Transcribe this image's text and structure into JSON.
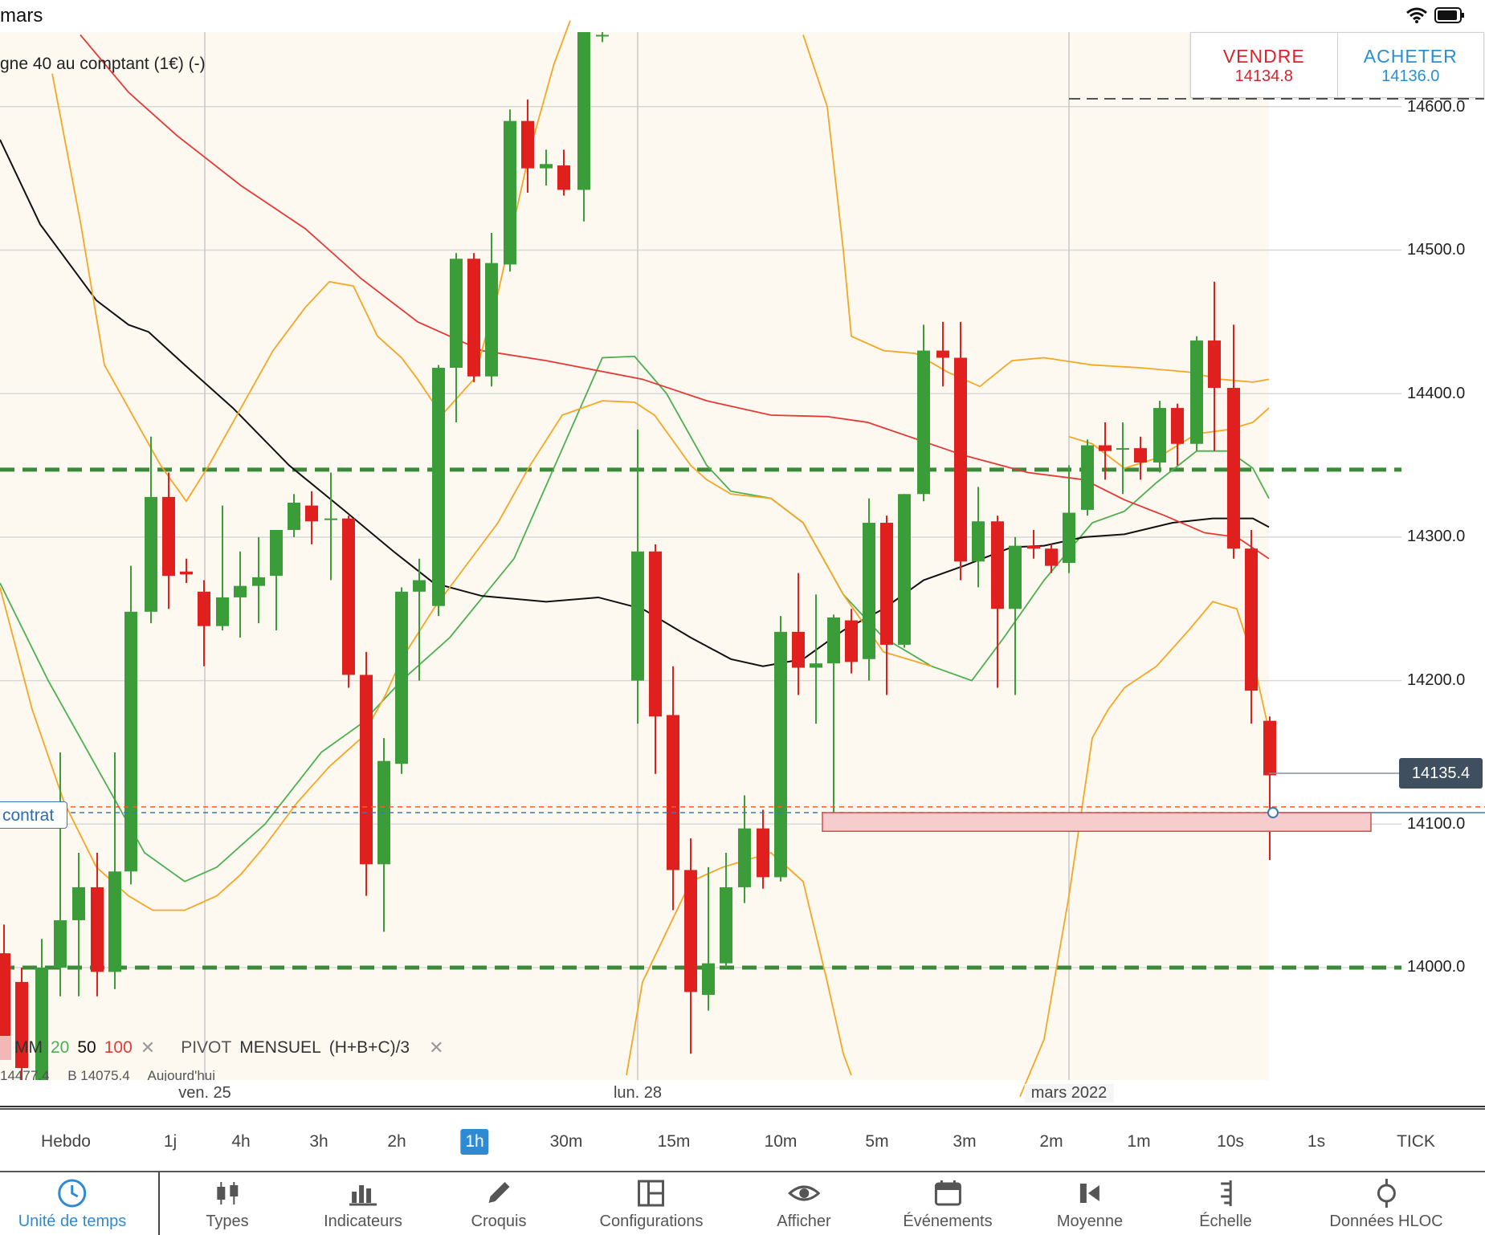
{
  "status_bar": {
    "title": "mars"
  },
  "instrument": {
    "label": "gne 40 au comptant (1€) (-)"
  },
  "trade": {
    "sell_label": "VENDRE",
    "sell_price": "14134.8",
    "buy_label": "ACHETER",
    "buy_price": "14136.0"
  },
  "colors": {
    "bull": "#3a9d3a",
    "bear": "#e01f1f",
    "ma20": "#4caf50",
    "ma50": "#111111",
    "ma100": "#e53935",
    "bollinger": "#f5a623",
    "active": "#2f8ad4"
  },
  "price_axis": {
    "ticks": [
      "14600.0",
      "14500.0",
      "14400.0",
      "14300.0",
      "14200.0",
      "14100.0",
      "14000.0"
    ],
    "last_price": "14135.4"
  },
  "contract_tag": "contrat",
  "legend": {
    "mm_label": "MM",
    "mm_20": "20",
    "mm_50": "50",
    "mm_100": "100",
    "pivot_label": "PIVOT",
    "pivot_period": "MENSUEL",
    "pivot_formula": "(H+B+C)/3",
    "row2": [
      "14477.4",
      "B 14075.4",
      "Aujourd'hui"
    ]
  },
  "date_axis": [
    "ven. 25",
    "lun. 28",
    "mars 2022"
  ],
  "timeframes": {
    "items": [
      "Hebdo",
      "1j",
      "4h",
      "3h",
      "2h",
      "1h",
      "30m",
      "15m",
      "10m",
      "5m",
      "3m",
      "2m",
      "1m",
      "10s",
      "1s",
      "TICK"
    ],
    "active": "1h"
  },
  "toolbar": {
    "items": [
      {
        "label": "Unité de temps",
        "icon": "clock-icon",
        "active": true
      },
      {
        "label": "Types",
        "icon": "candles-icon"
      },
      {
        "label": "Indicateurs",
        "icon": "bar-chart-icon"
      },
      {
        "label": "Croquis",
        "icon": "pencil-icon"
      },
      {
        "label": "Configurations",
        "icon": "layout-icon"
      },
      {
        "label": "Afficher",
        "icon": "eye-icon"
      },
      {
        "label": "Événements",
        "icon": "calendar-icon"
      },
      {
        "label": "Moyenne",
        "icon": "average-icon"
      },
      {
        "label": "Échelle",
        "icon": "scale-icon"
      },
      {
        "label": "Données HLOC",
        "icon": "crosshair-icon"
      }
    ]
  },
  "chart_data": {
    "type": "candlestick",
    "ylim": [
      13925,
      14650
    ],
    "pivot_lines": [
      14347,
      14000
    ],
    "bid_line": 14112,
    "ask_line": 14108,
    "zone": [
      14095,
      14108
    ],
    "candles": [
      {
        "x": 5,
        "o": 14010,
        "c": 13950,
        "h": 14030,
        "l": 13940
      },
      {
        "x": 27,
        "o": 13990,
        "c": 13930,
        "h": 14000,
        "l": 13920
      },
      {
        "x": 52,
        "o": 13920,
        "c": 14000,
        "h": 14020,
        "l": 13915
      },
      {
        "x": 75,
        "o": 14000,
        "c": 14033,
        "h": 14150,
        "l": 13980
      },
      {
        "x": 98,
        "o": 14033,
        "c": 14056,
        "h": 14080,
        "l": 13980
      },
      {
        "x": 121,
        "o": 14056,
        "c": 13997,
        "h": 14080,
        "l": 13980
      },
      {
        "x": 143,
        "o": 13997,
        "c": 14067,
        "h": 14150,
        "l": 13985
      },
      {
        "x": 163,
        "o": 14067,
        "c": 14248,
        "h": 14280,
        "l": 14058
      },
      {
        "x": 188,
        "o": 14248,
        "c": 14328,
        "h": 14370,
        "l": 14240
      },
      {
        "x": 210,
        "o": 14328,
        "c": 14273,
        "h": 14345,
        "l": 14250
      },
      {
        "x": 232,
        "o": 14276,
        "c": 14274,
        "h": 14285,
        "l": 14268
      },
      {
        "x": 254,
        "o": 14262,
        "c": 14238,
        "h": 14270,
        "l": 14210
      },
      {
        "x": 277,
        "o": 14238,
        "c": 14258,
        "h": 14322,
        "l": 14235
      },
      {
        "x": 299,
        "o": 14258,
        "c": 14266,
        "h": 14290,
        "l": 14230
      },
      {
        "x": 322,
        "o": 14266,
        "c": 14272,
        "h": 14300,
        "l": 14240
      },
      {
        "x": 344,
        "o": 14273,
        "c": 14305,
        "h": 14305,
        "l": 14235
      },
      {
        "x": 366,
        "o": 14305,
        "c": 14324,
        "h": 14330,
        "l": 14300
      },
      {
        "x": 388,
        "o": 14322,
        "c": 14311,
        "h": 14332,
        "l": 14295
      },
      {
        "x": 412,
        "o": 14313,
        "c": 14313,
        "h": 14345,
        "l": 14270
      },
      {
        "x": 434,
        "o": 14313,
        "c": 14204,
        "h": 14315,
        "l": 14195
      },
      {
        "x": 456,
        "o": 14204,
        "c": 14072,
        "h": 14220,
        "l": 14050
      },
      {
        "x": 478,
        "o": 14072,
        "c": 14144,
        "h": 14160,
        "l": 14025
      },
      {
        "x": 500,
        "o": 14142,
        "c": 14262,
        "h": 14265,
        "l": 14135
      },
      {
        "x": 522,
        "o": 14262,
        "c": 14270,
        "h": 14285,
        "l": 14200
      },
      {
        "x": 546,
        "o": 14252,
        "c": 14418,
        "h": 14420,
        "l": 14245
      },
      {
        "x": 568,
        "o": 14418,
        "c": 14494,
        "h": 14498,
        "l": 14380
      },
      {
        "x": 590,
        "o": 14494,
        "c": 14412,
        "h": 14498,
        "l": 14408
      },
      {
        "x": 612,
        "o": 14412,
        "c": 14491,
        "h": 14512,
        "l": 14405
      },
      {
        "x": 635,
        "o": 14490,
        "c": 14590,
        "h": 14598,
        "l": 14485
      },
      {
        "x": 657,
        "o": 14590,
        "c": 14557,
        "h": 14605,
        "l": 14540
      },
      {
        "x": 680,
        "o": 14557,
        "c": 14560,
        "h": 14570,
        "l": 14545
      },
      {
        "x": 702,
        "o": 14559,
        "c": 14542,
        "h": 14570,
        "l": 14538
      },
      {
        "x": 727,
        "o": 14542,
        "c": 14655,
        "h": 14660,
        "l": 14520
      },
      {
        "x": 750,
        "o": 14650,
        "c": 14650,
        "h": 14660,
        "l": 14645
      },
      {
        "x": 794,
        "o": 14200,
        "c": 14290,
        "h": 14375,
        "l": 14170
      },
      {
        "x": 816,
        "o": 14290,
        "c": 14175,
        "h": 14295,
        "l": 14135
      },
      {
        "x": 838,
        "o": 14176,
        "c": 14068,
        "h": 14210,
        "l": 14040
      },
      {
        "x": 860,
        "o": 14068,
        "c": 13983,
        "h": 14090,
        "l": 13940
      },
      {
        "x": 882,
        "o": 13981,
        "c": 14003,
        "h": 14070,
        "l": 13970
      },
      {
        "x": 904,
        "o": 14003,
        "c": 14056,
        "h": 14080,
        "l": 14000
      },
      {
        "x": 927,
        "o": 14056,
        "c": 14097,
        "h": 14120,
        "l": 14045
      },
      {
        "x": 950,
        "o": 14097,
        "c": 14063,
        "h": 14110,
        "l": 14055
      },
      {
        "x": 972,
        "o": 14063,
        "c": 14234,
        "h": 14245,
        "l": 14060
      },
      {
        "x": 994,
        "o": 14234,
        "c": 14209,
        "h": 14275,
        "l": 14190
      },
      {
        "x": 1016,
        "o": 14209,
        "c": 14212,
        "h": 14260,
        "l": 14170
      },
      {
        "x": 1038,
        "o": 14212,
        "c": 14244,
        "h": 14246,
        "l": 14105
      },
      {
        "x": 1060,
        "o": 14242,
        "c": 14213,
        "h": 14250,
        "l": 14205
      },
      {
        "x": 1082,
        "o": 14215,
        "c": 14310,
        "h": 14327,
        "l": 14200
      },
      {
        "x": 1104,
        "o": 14310,
        "c": 14225,
        "h": 14315,
        "l": 14190
      },
      {
        "x": 1126,
        "o": 14225,
        "c": 14330,
        "h": 14330,
        "l": 14223
      },
      {
        "x": 1150,
        "o": 14330,
        "c": 14430,
        "h": 14448,
        "l": 14325
      },
      {
        "x": 1174,
        "o": 14430,
        "c": 14425,
        "h": 14450,
        "l": 14405
      },
      {
        "x": 1196,
        "o": 14425,
        "c": 14283,
        "h": 14450,
        "l": 14270
      },
      {
        "x": 1218,
        "o": 14283,
        "c": 14311,
        "h": 14335,
        "l": 14265
      },
      {
        "x": 1242,
        "o": 14311,
        "c": 14250,
        "h": 14315,
        "l": 14195
      },
      {
        "x": 1264,
        "o": 14250,
        "c": 14294,
        "h": 14300,
        "l": 14190
      },
      {
        "x": 1287,
        "o": 14294,
        "c": 14292,
        "h": 14305,
        "l": 14285
      },
      {
        "x": 1309,
        "o": 14292,
        "c": 14280,
        "h": 14295,
        "l": 14275
      },
      {
        "x": 1331,
        "o": 14282,
        "c": 14317,
        "h": 14350,
        "l": 14275
      },
      {
        "x": 1354,
        "o": 14319,
        "c": 14364,
        "h": 14368,
        "l": 14315
      },
      {
        "x": 1376,
        "o": 14364,
        "c": 14360,
        "h": 14380,
        "l": 14340
      },
      {
        "x": 1398,
        "o": 14362,
        "c": 14362,
        "h": 14380,
        "l": 14330
      },
      {
        "x": 1420,
        "o": 14362,
        "c": 14352,
        "h": 14370,
        "l": 14340
      },
      {
        "x": 1444,
        "o": 14352,
        "c": 14390,
        "h": 14395,
        "l": 14345
      },
      {
        "x": 1466,
        "o": 14390,
        "c": 14365,
        "h": 14393,
        "l": 14350
      },
      {
        "x": 1490,
        "o": 14365,
        "c": 14437,
        "h": 14440,
        "l": 14360
      },
      {
        "x": 1512,
        "o": 14437,
        "c": 14404,
        "h": 14478,
        "l": 14360
      },
      {
        "x": 1536,
        "o": 14404,
        "c": 14292,
        "h": 14448,
        "l": 14285
      },
      {
        "x": 1558,
        "o": 14292,
        "c": 14193,
        "h": 14305,
        "l": 14170
      },
      {
        "x": 1581,
        "o": 14172,
        "c": 14134,
        "h": 14175,
        "l": 14075
      }
    ],
    "series": [
      {
        "name": "20",
        "color": "#4caf50",
        "points": [
          [
            0,
            14268
          ],
          [
            60,
            14200
          ],
          [
            120,
            14140
          ],
          [
            180,
            14080
          ],
          [
            230,
            14060
          ],
          [
            270,
            14070
          ],
          [
            330,
            14100
          ],
          [
            400,
            14150
          ],
          [
            450,
            14170
          ],
          [
            500,
            14200
          ],
          [
            560,
            14230
          ],
          [
            640,
            14285
          ],
          [
            750,
            14425
          ],
          [
            790,
            14426
          ],
          [
            830,
            14400
          ],
          [
            880,
            14350
          ],
          [
            910,
            14332
          ],
          [
            960,
            14327
          ],
          [
            1000,
            14310
          ],
          [
            1050,
            14260
          ],
          [
            1100,
            14230
          ],
          [
            1160,
            14210
          ],
          [
            1210,
            14200
          ],
          [
            1250,
            14230
          ],
          [
            1300,
            14270
          ],
          [
            1360,
            14310
          ],
          [
            1400,
            14318
          ],
          [
            1440,
            14338
          ],
          [
            1490,
            14360
          ],
          [
            1530,
            14360
          ],
          [
            1560,
            14348
          ],
          [
            1580,
            14327
          ]
        ]
      },
      {
        "name": "50",
        "color": "#111111",
        "points": [
          [
            0,
            14577
          ],
          [
            50,
            14518
          ],
          [
            120,
            14465
          ],
          [
            160,
            14448
          ],
          [
            185,
            14443
          ],
          [
            230,
            14420
          ],
          [
            290,
            14390
          ],
          [
            360,
            14350
          ],
          [
            430,
            14318
          ],
          [
            490,
            14290
          ],
          [
            540,
            14268
          ],
          [
            600,
            14259
          ],
          [
            680,
            14255
          ],
          [
            745,
            14258
          ],
          [
            800,
            14250
          ],
          [
            860,
            14230
          ],
          [
            910,
            14215
          ],
          [
            950,
            14210
          ],
          [
            1000,
            14215
          ],
          [
            1050,
            14235
          ],
          [
            1100,
            14250
          ],
          [
            1150,
            14270
          ],
          [
            1200,
            14280
          ],
          [
            1260,
            14293
          ],
          [
            1300,
            14294
          ],
          [
            1350,
            14300
          ],
          [
            1400,
            14302
          ],
          [
            1460,
            14310
          ],
          [
            1510,
            14313
          ],
          [
            1560,
            14313
          ],
          [
            1580,
            14307
          ]
        ]
      },
      {
        "name": "100",
        "color": "#e53935",
        "points": [
          [
            100,
            14650
          ],
          [
            160,
            14610
          ],
          [
            220,
            14580
          ],
          [
            300,
            14545
          ],
          [
            380,
            14515
          ],
          [
            450,
            14480
          ],
          [
            520,
            14450
          ],
          [
            600,
            14430
          ],
          [
            680,
            14423
          ],
          [
            800,
            14410
          ],
          [
            880,
            14395
          ],
          [
            960,
            14385
          ],
          [
            1030,
            14384
          ],
          [
            1080,
            14380
          ],
          [
            1200,
            14357
          ],
          [
            1280,
            14345
          ],
          [
            1350,
            14340
          ],
          [
            1400,
            14326
          ],
          [
            1450,
            14315
          ],
          [
            1500,
            14303
          ],
          [
            1540,
            14300
          ],
          [
            1580,
            14285
          ]
        ]
      },
      {
        "name": "",
        "color": "#f5a623",
        "points": [
          [
            65,
            14623
          ],
          [
            100,
            14520
          ],
          [
            130,
            14420
          ],
          [
            165,
            14385
          ],
          [
            200,
            14350
          ],
          [
            232,
            14325
          ],
          [
            260,
            14350
          ],
          [
            300,
            14390
          ],
          [
            340,
            14430
          ],
          [
            380,
            14460
          ],
          [
            410,
            14478
          ],
          [
            440,
            14475
          ],
          [
            470,
            14440
          ],
          [
            500,
            14425
          ],
          [
            520,
            14410
          ],
          [
            550,
            14385
          ],
          [
            590,
            14410
          ],
          [
            620,
            14470
          ],
          [
            660,
            14570
          ],
          [
            690,
            14630
          ],
          [
            710,
            14660
          ]
        ]
      },
      {
        "name": "",
        "color": "#f5a623",
        "points": [
          [
            0,
            14265
          ],
          [
            40,
            14180
          ],
          [
            80,
            14115
          ],
          [
            120,
            14070
          ],
          [
            160,
            14050
          ],
          [
            190,
            14040
          ],
          [
            230,
            14040
          ],
          [
            270,
            14050
          ],
          [
            300,
            14065
          ],
          [
            330,
            14085
          ],
          [
            370,
            14115
          ],
          [
            410,
            14140
          ],
          [
            450,
            14160
          ],
          [
            480,
            14190
          ],
          [
            500,
            14215
          ],
          [
            540,
            14250
          ],
          [
            580,
            14280
          ],
          [
            620,
            14310
          ],
          [
            660,
            14350
          ],
          [
            700,
            14385
          ],
          [
            750,
            14395
          ],
          [
            790,
            14394
          ],
          [
            815,
            14385
          ],
          [
            860,
            14350
          ],
          [
            880,
            14340
          ],
          [
            910,
            14330
          ],
          [
            960,
            14327
          ],
          [
            1000,
            14310
          ],
          [
            1050,
            14260
          ],
          [
            1100,
            14220
          ],
          [
            1160,
            14210
          ]
        ]
      }
    ]
  }
}
